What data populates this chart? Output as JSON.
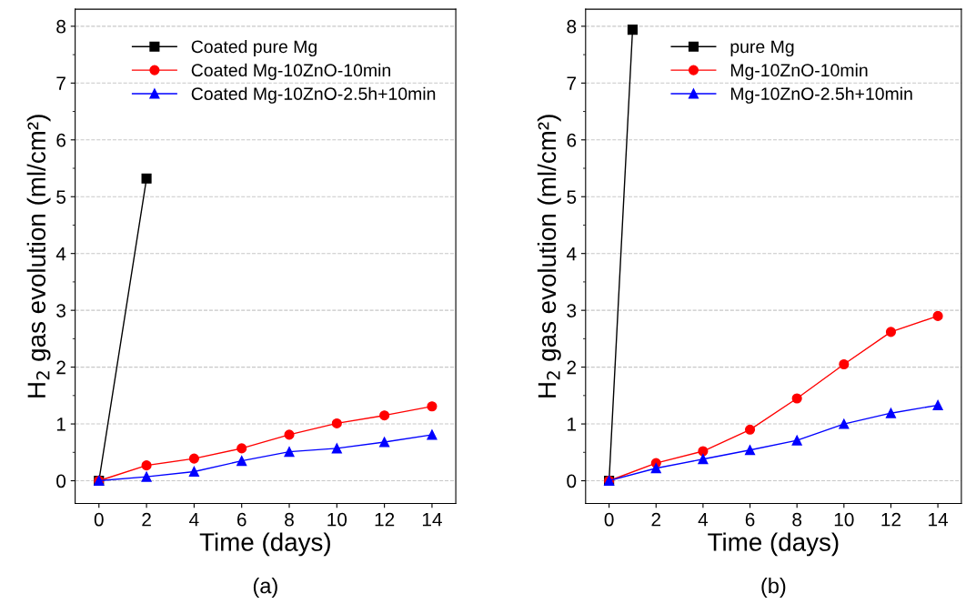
{
  "chart_data": [
    {
      "type": "line",
      "title": "(a)",
      "xlabel": "Time (days)",
      "ylabel": "H$_{2}$ gas evolution (ml/cm²)",
      "xlim": [
        -1,
        15
      ],
      "ylim": [
        -0.4,
        8.3
      ],
      "xticks": [
        0,
        2,
        4,
        6,
        8,
        10,
        12,
        14
      ],
      "yticks": [
        0,
        1,
        2,
        3,
        4,
        5,
        6,
        7,
        8
      ],
      "grid": "y",
      "legend": "top right",
      "line_style": "solid",
      "series": [
        {
          "name": "Coated pure Mg",
          "color": "#000000",
          "marker": "square",
          "x": [
            0,
            2
          ],
          "values": [
            0,
            5.32
          ]
        },
        {
          "name": "Coated Mg-10ZnO-10min",
          "color": "#ff0000",
          "marker": "circle",
          "x": [
            0,
            2,
            4,
            6,
            8,
            10,
            12,
            14
          ],
          "values": [
            0,
            0.27,
            0.39,
            0.57,
            0.81,
            1.01,
            1.15,
            1.31
          ]
        },
        {
          "name": "Coated Mg-10ZnO-2.5h+10min",
          "color": "#0000ff",
          "marker": "triangle",
          "x": [
            0,
            2,
            4,
            6,
            8,
            10,
            12,
            14
          ],
          "values": [
            0,
            0.07,
            0.16,
            0.35,
            0.51,
            0.57,
            0.68,
            0.81
          ]
        }
      ]
    },
    {
      "type": "line",
      "title": "(b)",
      "xlabel": "Time (days)",
      "ylabel": "H$_{2}$ gas evolution (ml/cm²)",
      "xlim": [
        -1,
        15
      ],
      "ylim": [
        -0.4,
        8.3
      ],
      "xticks": [
        0,
        2,
        4,
        6,
        8,
        10,
        12,
        14
      ],
      "yticks": [
        0,
        1,
        2,
        3,
        4,
        5,
        6,
        7,
        8
      ],
      "grid": "y",
      "legend": "top",
      "line_style": "solid",
      "series": [
        {
          "name": "pure Mg",
          "color": "#000000",
          "marker": "square",
          "x": [
            0,
            1
          ],
          "values": [
            0,
            7.94
          ]
        },
        {
          "name": "Mg-10ZnO-10min",
          "color": "#ff0000",
          "marker": "circle",
          "x": [
            0,
            2,
            4,
            6,
            8,
            10,
            12,
            14
          ],
          "values": [
            0,
            0.31,
            0.52,
            0.9,
            1.45,
            2.05,
            2.62,
            2.9
          ]
        },
        {
          "name": "Mg-10ZnO-2.5h+10min",
          "color": "#0000ff",
          "marker": "triangle",
          "x": [
            0,
            2,
            4,
            6,
            8,
            10,
            12,
            14
          ],
          "values": [
            0,
            0.22,
            0.38,
            0.54,
            0.71,
            1.0,
            1.19,
            1.33
          ]
        }
      ]
    }
  ]
}
